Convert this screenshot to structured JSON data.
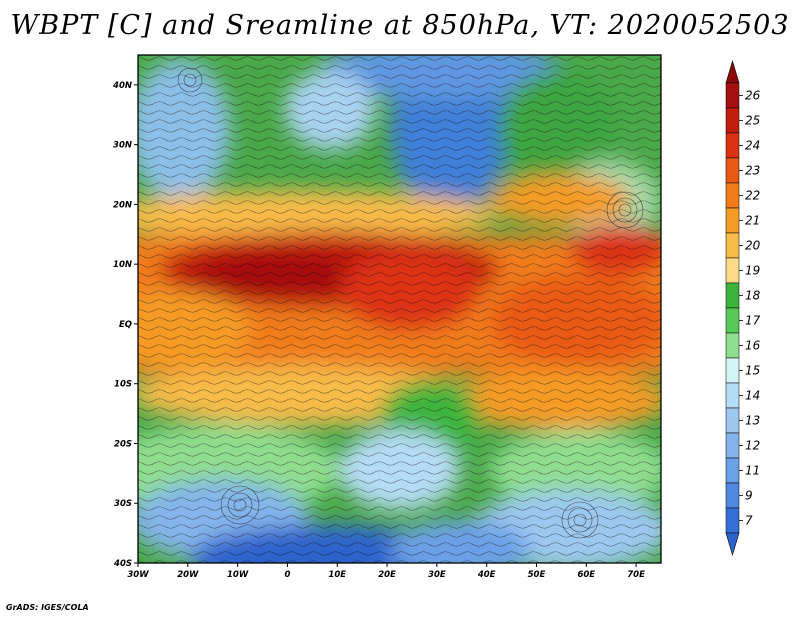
{
  "title": "WBPT [C] and Sreamline at 850hPa, VT: 2020052503",
  "credit": "GrADS: IGES/COLA",
  "map": {
    "lon_range": [
      -30,
      75
    ],
    "lat_range": [
      -40,
      45
    ],
    "lat_ticks": [
      {
        "value": 40,
        "label": "40N"
      },
      {
        "value": 30,
        "label": "30N"
      },
      {
        "value": 20,
        "label": "20N"
      },
      {
        "value": 10,
        "label": "10N"
      },
      {
        "value": 0,
        "label": "EQ"
      },
      {
        "value": -10,
        "label": "10S"
      },
      {
        "value": -20,
        "label": "20S"
      },
      {
        "value": -30,
        "label": "30S"
      },
      {
        "value": -40,
        "label": "40S"
      }
    ],
    "lon_ticks": [
      {
        "value": -30,
        "label": "30W"
      },
      {
        "value": -20,
        "label": "20W"
      },
      {
        "value": -10,
        "label": "10W"
      },
      {
        "value": 0,
        "label": "0"
      },
      {
        "value": 10,
        "label": "10E"
      },
      {
        "value": 20,
        "label": "20E"
      },
      {
        "value": 30,
        "label": "30E"
      },
      {
        "value": 40,
        "label": "40E"
      },
      {
        "value": 50,
        "label": "50E"
      },
      {
        "value": 60,
        "label": "60E"
      },
      {
        "value": 70,
        "label": "70E"
      }
    ]
  },
  "colorbar": {
    "labels": [
      "26",
      "25",
      "24",
      "23",
      "22",
      "21",
      "20",
      "19",
      "18",
      "17",
      "16",
      "15",
      "14",
      "13",
      "12",
      "11",
      "9",
      "7"
    ],
    "colors": [
      "#a50f0f",
      "#c21e0e",
      "#dc3213",
      "#e95a14",
      "#f07d1a",
      "#f49b28",
      "#f7bb4a",
      "#fbdb88",
      "#3cb43c",
      "#58c858",
      "#8fde8f",
      "#d4f5f5",
      "#b5dcf5",
      "#9cc8f0",
      "#84b4ea",
      "#6aa0e6",
      "#4f88df",
      "#3570d8"
    ],
    "top_arrow_color": "#8c0a0a",
    "bottom_arrow_color": "#2f63cc"
  }
}
